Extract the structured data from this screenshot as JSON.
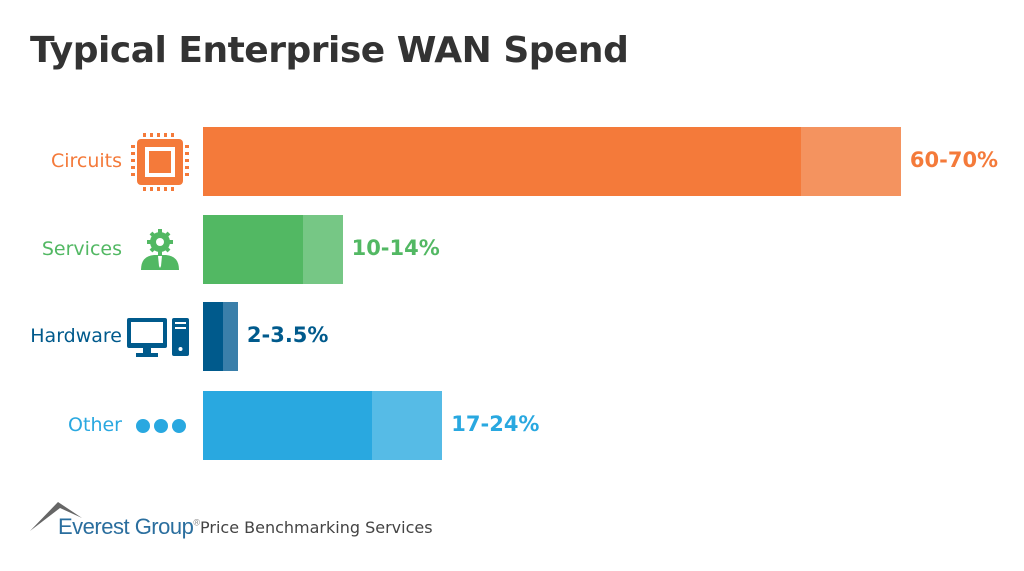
{
  "chart_data": {
    "type": "bar",
    "orientation": "horizontal",
    "title": "Typical Enterprise WAN Spend",
    "categories": [
      "Circuits",
      "Services",
      "Hardware",
      "Other"
    ],
    "ranges": [
      {
        "low": 60,
        "high": 70,
        "label": "60-70%",
        "color": "#F47A3A",
        "light": "#F4935F",
        "icon": "microchip-icon"
      },
      {
        "low": 10,
        "high": 14,
        "label": "10-14%",
        "color": "#52B863",
        "light": "#76C785",
        "icon": "gear-person-icon"
      },
      {
        "low": 2,
        "high": 3.5,
        "label": "2-3.5%",
        "color": "#005A8C",
        "light": "#3A7FAA",
        "icon": "desktop-computer-icon"
      },
      {
        "low": 17,
        "high": 24,
        "label": "17-24%",
        "color": "#29A8E0",
        "light": "#56BBE6",
        "icon": "ellipsis-dots-icon"
      }
    ],
    "unit": "%",
    "grid": false
  },
  "footer": {
    "brand": "Everest Group",
    "registered": "®",
    "service": "Price Benchmarking Services"
  }
}
